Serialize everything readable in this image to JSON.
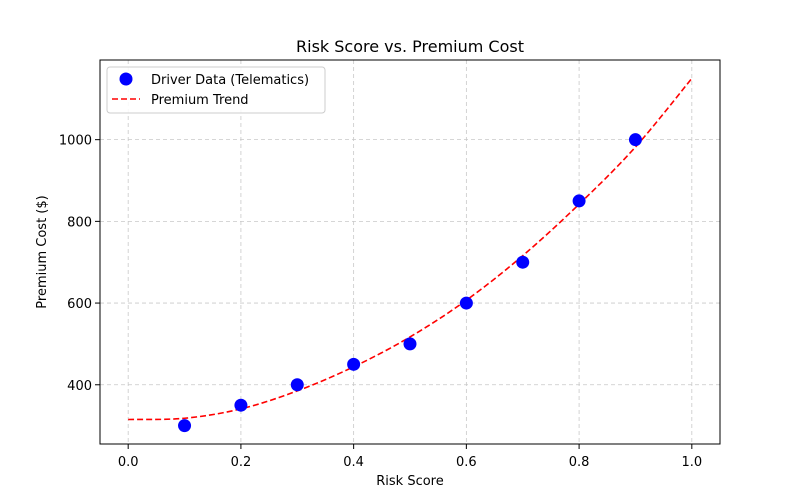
{
  "chart_data": {
    "type": "scatter",
    "title": "Risk Score vs. Premium Cost",
    "xlabel": "Risk Score",
    "ylabel": "Premium Cost ($)",
    "xlim": [
      -0.05,
      1.05
    ],
    "ylim": [
      255,
      1195
    ],
    "xticks": [
      0.0,
      0.2,
      0.4,
      0.6,
      0.8,
      1.0
    ],
    "xtick_labels": [
      "0.0",
      "0.2",
      "0.4",
      "0.6",
      "0.8",
      "1.0"
    ],
    "yticks": [
      400,
      600,
      800,
      1000
    ],
    "ytick_labels": [
      "400",
      "600",
      "800",
      "1000"
    ],
    "grid": true,
    "legend_position": "top-left",
    "series": [
      {
        "name": "Driver Data (Telematics)",
        "kind": "scatter",
        "color": "#0000ff",
        "x": [
          0.1,
          0.2,
          0.3,
          0.4,
          0.5,
          0.6,
          0.7,
          0.8,
          0.9
        ],
        "y": [
          300,
          350,
          400,
          450,
          500,
          600,
          700,
          850,
          1000
        ]
      },
      {
        "name": "Premium Trend",
        "kind": "line",
        "style": "dashed",
        "color": "#ff0000",
        "x": [
          0.0,
          0.1,
          0.2,
          0.3,
          0.4,
          0.5,
          0.6,
          0.7,
          0.8,
          0.9,
          1.0
        ],
        "y": [
          315,
          318,
          341,
          385,
          444,
          517,
          607,
          716,
          842,
          982,
          1150
        ]
      }
    ]
  }
}
